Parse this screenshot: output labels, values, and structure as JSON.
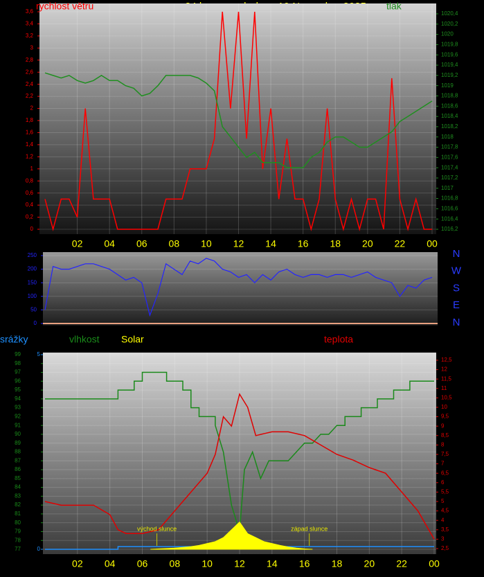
{
  "chart_data": [
    {
      "type": "line",
      "title": "24 hour graph day : 10 November 2025",
      "grid": true,
      "x": [
        0,
        0.5,
        1,
        1.5,
        2,
        2.5,
        3,
        3.5,
        4,
        4.5,
        5,
        5.5,
        6,
        6.5,
        7,
        7.5,
        8,
        8.5,
        9,
        9.5,
        10,
        10.5,
        11,
        11.5,
        12,
        12.5,
        13,
        13.5,
        14,
        14.5,
        15,
        15.5,
        16,
        16.5,
        17,
        17.5,
        18,
        18.5,
        19,
        19.5,
        20,
        20.5,
        21,
        21.5,
        22,
        22.5,
        23,
        23.5,
        24
      ],
      "xlim": [
        0,
        24
      ],
      "xticks": [
        {
          "value": 2,
          "label": "02"
        },
        {
          "value": 4,
          "label": "04"
        },
        {
          "value": 6,
          "label": "06"
        },
        {
          "value": 8,
          "label": "08"
        },
        10,
        12,
        14,
        16,
        18,
        20,
        22,
        {
          "value": 24,
          "label": "00"
        }
      ],
      "ylim": [
        0,
        3.6
      ],
      "yticks": [
        0,
        {
          "value": 0.2,
          "label": "0,2"
        },
        {
          "value": 0.4,
          "label": "0,4"
        },
        {
          "value": 0.6,
          "label": "0,6"
        },
        {
          "value": 0.8,
          "label": "0,8"
        },
        1,
        {
          "value": 1.2,
          "label": "1,2"
        },
        {
          "value": 1.4,
          "label": "1,4"
        },
        {
          "value": 1.6,
          "label": "1,6"
        },
        {
          "value": 1.8,
          "label": "1,8"
        },
        2,
        {
          "value": 2.2,
          "label": "2,2"
        },
        {
          "value": 2.4,
          "label": "2,4"
        },
        {
          "value": 2.6,
          "label": "2,6"
        },
        {
          "value": 2.8,
          "label": "2,8"
        },
        3,
        {
          "value": 3.2,
          "label": "3,2"
        },
        {
          "value": 3.4,
          "label": "3,4"
        },
        {
          "value": 3.6,
          "label": "3,6"
        }
      ],
      "y2lim": [
        1016.2,
        1020.4
      ],
      "y2ticks": [
        {
          "value": 1016.2,
          "label": "1016,2"
        },
        {
          "value": 1016.4,
          "label": "1016,4"
        },
        {
          "value": 1016.6,
          "label": "1016,6"
        },
        {
          "value": 1016.8,
          "label": "1016,8"
        },
        1017,
        {
          "value": 1017.2,
          "label": "1017,2"
        },
        {
          "value": 1017.4,
          "label": "1017,4"
        },
        {
          "value": 1017.6,
          "label": "1017,6"
        },
        {
          "value": 1017.8,
          "label": "1017,8"
        },
        1018,
        {
          "value": 1018.2,
          "label": "1018,2"
        },
        {
          "value": 1018.4,
          "label": "1018,4"
        },
        {
          "value": 1018.6,
          "label": "1018,6"
        },
        {
          "value": 1018.8,
          "label": "1018,8"
        },
        1019,
        {
          "value": 1019.2,
          "label": "1019,2"
        },
        {
          "value": 1019.4,
          "label": "1019,4"
        },
        {
          "value": 1019.6,
          "label": "1019,6"
        },
        {
          "value": 1019.8,
          "label": "1019,8"
        },
        1020,
        {
          "value": 1020.2,
          "label": "1020,2"
        },
        {
          "value": 1020.4,
          "label": "1020,4"
        }
      ],
      "series": [
        {
          "name": "rychlost větru",
          "color": "#ff0000",
          "values": [
            0.5,
            0,
            0.5,
            0.5,
            0.2,
            2.0,
            0.5,
            0.5,
            0.5,
            0,
            0,
            0,
            0,
            0,
            0,
            0.5,
            0.5,
            0.5,
            1.0,
            1.0,
            1.0,
            1.5,
            3.6,
            2.0,
            3.6,
            1.5,
            3.6,
            1.0,
            2.0,
            0.5,
            1.5,
            0.5,
            0.5,
            0,
            0.5,
            2.0,
            0.5,
            0,
            0.5,
            0,
            0.5,
            0.5,
            0,
            2.5,
            0.5,
            0,
            0.5,
            0,
            0
          ]
        },
        {
          "name": "tlak",
          "color": "#1f8f1f",
          "axis": "y2",
          "values": [
            1019.25,
            1019.2,
            1019.15,
            1019.2,
            1019.1,
            1019.05,
            1019.1,
            1019.2,
            1019.1,
            1019.1,
            1019.0,
            1018.95,
            1018.8,
            1018.85,
            1019.0,
            1019.2,
            1019.2,
            1019.2,
            1019.2,
            1019.15,
            1019.05,
            1018.9,
            1018.2,
            1018.0,
            1017.8,
            1017.6,
            1017.7,
            1017.5,
            1017.5,
            1017.5,
            1017.4,
            1017.4,
            1017.4,
            1017.6,
            1017.7,
            1017.9,
            1018.0,
            1018.0,
            1017.9,
            1017.8,
            1017.8,
            1017.9,
            1018.0,
            1018.1,
            1018.3,
            1018.4,
            1018.5,
            1018.6,
            1018.7
          ]
        }
      ]
    },
    {
      "type": "line",
      "grid": true,
      "x": [
        0,
        0.5,
        1,
        1.5,
        2,
        2.5,
        3,
        3.5,
        4,
        4.5,
        5,
        5.5,
        6,
        6.5,
        7,
        7.5,
        8,
        8.5,
        9,
        9.5,
        10,
        10.5,
        11,
        11.5,
        12,
        12.5,
        13,
        13.5,
        14,
        14.5,
        15,
        15.5,
        16,
        16.5,
        17,
        17.5,
        18,
        18.5,
        19,
        19.5,
        20,
        20.5,
        21,
        21.5,
        22,
        22.5,
        23,
        23.5,
        24
      ],
      "xlim": [
        0,
        24
      ],
      "ylim": [
        0,
        250
      ],
      "yticks": [
        0,
        50,
        100,
        150,
        200,
        250
      ],
      "direction_labels": [
        "N",
        "W",
        "S",
        "E",
        "N"
      ],
      "series": [
        {
          "color": "#2424ff",
          "values": [
            50,
            210,
            200,
            200,
            210,
            220,
            220,
            210,
            200,
            180,
            160,
            170,
            150,
            30,
            110,
            220,
            200,
            180,
            230,
            220,
            240,
            230,
            200,
            190,
            170,
            180,
            150,
            180,
            160,
            190,
            200,
            180,
            170,
            180,
            180,
            170,
            180,
            180,
            170,
            180,
            190,
            170,
            160,
            150,
            100,
            140,
            130,
            160,
            170
          ]
        }
      ]
    },
    {
      "type": "line",
      "grid": true,
      "xlim": [
        0,
        24
      ],
      "xticks": [
        {
          "value": 2,
          "label": "02"
        },
        {
          "value": 4,
          "label": "04"
        },
        {
          "value": 6,
          "label": "06"
        },
        {
          "value": 8,
          "label": "08"
        },
        10,
        12,
        14,
        16,
        18,
        20,
        22,
        {
          "value": 24,
          "label": "00"
        }
      ],
      "ylim": [
        77,
        99
      ],
      "yticks": [
        77,
        78,
        79,
        80,
        81,
        82,
        83,
        84,
        85,
        86,
        87,
        88,
        89,
        90,
        91,
        92,
        93,
        94,
        95,
        96,
        97,
        98,
        99
      ],
      "y2lim": [
        2.5,
        12.5
      ],
      "y2ticks": [
        {
          "value": 2.5,
          "label": "2,5"
        },
        3,
        {
          "value": 3.5,
          "label": "3,5"
        },
        4,
        {
          "value": 4.5,
          "label": "4,5"
        },
        5,
        {
          "value": 5.5,
          "label": "5,5"
        },
        6,
        {
          "value": 6.5,
          "label": "6,5"
        },
        7,
        {
          "value": 7.5,
          "label": "7,5"
        },
        8,
        {
          "value": 8.5,
          "label": "8,5"
        },
        9,
        {
          "value": 9.5,
          "label": "9,5"
        },
        10,
        {
          "value": 10.5,
          "label": "10,5"
        },
        11,
        {
          "value": 11.5,
          "label": "11,5"
        },
        12,
        {
          "value": 12.5,
          "label": "12,5"
        }
      ],
      "y3lim": [
        0,
        5
      ],
      "y3ticks": [
        0,
        5
      ],
      "annotations": [
        {
          "text": "východ slunce",
          "x": 6.9
        },
        {
          "text": "západ slunce",
          "x": 16.3
        }
      ],
      "series": [
        {
          "name": "srážky",
          "color": "#1e90ff",
          "axis": "y3",
          "x": [
            0,
            4.5,
            4.5,
            24
          ],
          "values": [
            0,
            0,
            0.07,
            0.07
          ]
        },
        {
          "name": "vlhkost",
          "color": "#1a8a1a",
          "x": [
            0,
            4.5,
            4.5,
            5.5,
            5.5,
            6,
            6,
            7.5,
            7.5,
            8.5,
            8.5,
            9,
            9,
            9.5,
            9.5,
            10.5,
            10.5,
            11,
            11.5,
            12,
            12.3,
            12.8,
            13.3,
            13.8,
            14.5,
            15,
            15.5,
            16,
            16.5,
            17,
            17.5,
            18,
            18.5,
            18.5,
            19.5,
            19.5,
            20.5,
            20.5,
            21.5,
            21.5,
            22.5,
            22.5,
            24
          ],
          "values": [
            94,
            94,
            95,
            95,
            96,
            96,
            97,
            97,
            96,
            96,
            95,
            95,
            93,
            93,
            92,
            92,
            91,
            88,
            82,
            79,
            86,
            88,
            85,
            87,
            87,
            87,
            88,
            89,
            89,
            90,
            90,
            91,
            91,
            92,
            92,
            93,
            93,
            94,
            94,
            95,
            95,
            96,
            96
          ]
        },
        {
          "name": "Solar",
          "color": "#ffff00",
          "axis": "y3",
          "area": true,
          "x": [
            6.5,
            7,
            7.5,
            8,
            8.5,
            9,
            9.5,
            10,
            10.5,
            11,
            11.5,
            12,
            12.5,
            13,
            13.5,
            14,
            14.5,
            15,
            15.5,
            16,
            16.5
          ],
          "values": [
            0,
            0.01,
            0.02,
            0.03,
            0.05,
            0.07,
            0.1,
            0.15,
            0.2,
            0.3,
            0.5,
            0.7,
            0.4,
            0.3,
            0.2,
            0.15,
            0.1,
            0.06,
            0.03,
            0.01,
            0
          ]
        },
        {
          "name": "teplota",
          "color": "#e00000",
          "axis": "y2",
          "x": [
            0,
            1,
            2,
            3,
            4,
            4.5,
            5,
            6,
            7,
            8,
            9,
            10,
            10.5,
            11,
            11.5,
            12,
            12.5,
            13,
            14,
            15,
            16,
            17,
            18,
            19,
            20,
            21,
            22,
            23,
            24
          ],
          "values": [
            5.0,
            4.8,
            4.8,
            4.8,
            4.3,
            3.5,
            3.3,
            3.3,
            3.5,
            4.5,
            5.5,
            6.5,
            7.5,
            9.5,
            9.0,
            10.7,
            10.0,
            8.5,
            8.7,
            8.7,
            8.5,
            8.0,
            7.5,
            7.2,
            6.8,
            6.5,
            5.5,
            4.5,
            3.0
          ]
        }
      ]
    }
  ]
}
